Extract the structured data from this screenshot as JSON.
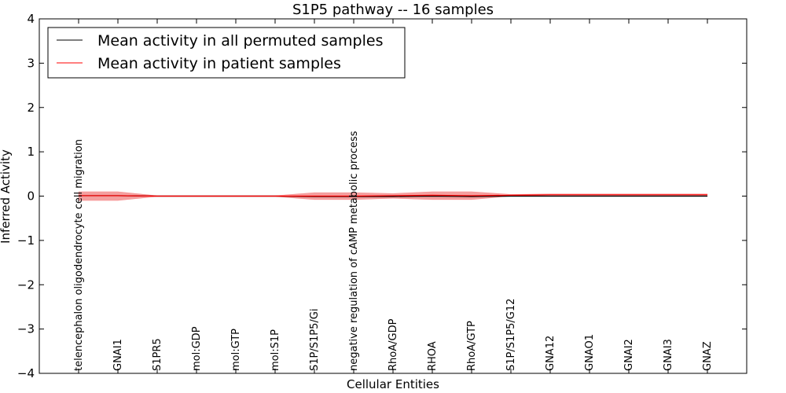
{
  "chart_data": {
    "type": "line",
    "title": "S1P5 pathway -- 16 samples",
    "xlabel": "Cellular Entities",
    "ylabel": "Inferred Activity",
    "ylim": [
      -4,
      4
    ],
    "yticks": [
      -4,
      -3,
      -2,
      -1,
      0,
      1,
      2,
      3,
      4
    ],
    "categories": [
      "telencephalon oligodendrocyte cell migration",
      "GNAI1",
      "S1PR5",
      "mol:GDP",
      "mol:GTP",
      "mol:S1P",
      "S1P/S1P5/Gi",
      "negative regulation of cAMP metabolic process",
      "RhoA/GDP",
      "RHOA",
      "RhoA/GTP",
      "S1P/S1P5/G12",
      "GNA12",
      "GNAO1",
      "GNAI2",
      "GNAI3",
      "GNAZ"
    ],
    "legend": {
      "position": "top-left",
      "entries": [
        {
          "label": "Mean activity in all permuted samples",
          "color": "#000000"
        },
        {
          "label": "Mean activity in patient samples",
          "color": "#ff0000"
        }
      ]
    },
    "series": [
      {
        "name": "Mean activity in all permuted samples",
        "color": "#000000",
        "values": [
          0.01,
          0.01,
          0.0,
          0.0,
          0.0,
          0.0,
          -0.01,
          -0.01,
          -0.01,
          0.0,
          -0.01,
          0.0,
          0.0,
          0.0,
          0.0,
          0.0,
          0.0
        ],
        "band": {
          "color": "#808080",
          "lower": [
            -0.01,
            -0.01,
            -0.01,
            -0.01,
            -0.01,
            -0.01,
            -0.02,
            -0.02,
            -0.02,
            -0.01,
            -0.02,
            -0.01,
            -0.01,
            -0.01,
            -0.01,
            -0.01,
            -0.01
          ],
          "upper": [
            0.02,
            0.02,
            0.01,
            0.01,
            0.01,
            0.01,
            0.01,
            0.01,
            0.01,
            0.01,
            0.01,
            0.01,
            0.01,
            0.01,
            0.01,
            0.01,
            0.01
          ]
        }
      },
      {
        "name": "Mean activity in patient samples",
        "color": "#ff0000",
        "values": [
          0.01,
          0.01,
          0.0,
          0.0,
          0.0,
          0.0,
          0.0,
          0.0,
          0.01,
          0.02,
          0.01,
          0.02,
          0.03,
          0.03,
          0.03,
          0.03,
          0.03
        ],
        "band": {
          "color": "#f08080",
          "lower": [
            -0.1,
            -0.1,
            -0.01,
            -0.01,
            -0.01,
            -0.01,
            -0.08,
            -0.08,
            -0.05,
            -0.08,
            -0.08,
            0.0,
            0.02,
            0.02,
            0.02,
            0.02,
            0.02
          ],
          "upper": [
            0.1,
            0.1,
            0.01,
            0.01,
            0.01,
            0.01,
            0.08,
            0.08,
            0.06,
            0.1,
            0.1,
            0.04,
            0.05,
            0.05,
            0.05,
            0.05,
            0.05
          ]
        }
      }
    ]
  }
}
